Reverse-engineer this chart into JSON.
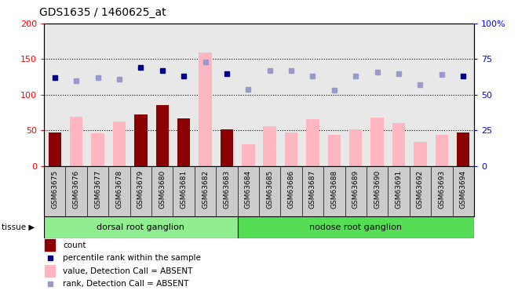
{
  "title": "GDS1635 / 1460625_at",
  "categories": [
    "GSM63675",
    "GSM63676",
    "GSM63677",
    "GSM63678",
    "GSM63679",
    "GSM63680",
    "GSM63681",
    "GSM63682",
    "GSM63683",
    "GSM63684",
    "GSM63685",
    "GSM63686",
    "GSM63687",
    "GSM63688",
    "GSM63689",
    "GSM63690",
    "GSM63691",
    "GSM63692",
    "GSM63693",
    "GSM63694"
  ],
  "bar_values": [
    47,
    0,
    0,
    0,
    72,
    86,
    67,
    0,
    51,
    0,
    0,
    0,
    0,
    0,
    0,
    0,
    0,
    0,
    0,
    47
  ],
  "pink_bar_values": [
    0,
    69,
    46,
    62,
    0,
    0,
    0,
    159,
    0,
    31,
    56,
    47,
    66,
    44,
    51,
    68,
    60,
    34,
    44,
    0
  ],
  "dark_blue_dots": [
    62,
    0,
    0,
    0,
    69,
    67,
    63,
    0,
    65,
    0,
    0,
    0,
    0,
    0,
    0,
    0,
    0,
    0,
    0,
    63
  ],
  "light_blue_dots": [
    0,
    60,
    62,
    61,
    0,
    0,
    0,
    73,
    0,
    54,
    67,
    67,
    63,
    53,
    63,
    66,
    65,
    57,
    64,
    0
  ],
  "tissue_groups": [
    {
      "label": "dorsal root ganglion",
      "start": 0,
      "end": 8,
      "color": "#90ee90"
    },
    {
      "label": "nodose root ganglion",
      "start": 9,
      "end": 19,
      "color": "#55dd55"
    }
  ],
  "ylim_left": [
    0,
    200
  ],
  "ylim_right": [
    0,
    100
  ],
  "yticks_left": [
    0,
    50,
    100,
    150,
    200
  ],
  "yticks_right": [
    0,
    25,
    50,
    75,
    100
  ],
  "bar_color_dark": "#8B0000",
  "bar_color_pink": "#FFB6C1",
  "dot_color_dark": "#00008B",
  "dot_color_light": "#9999CC",
  "bg_color": "#E8E8E8",
  "xticklabel_bg": "#D3D3D3",
  "legend_items": [
    {
      "label": "count",
      "color": "#8B0000",
      "type": "bar"
    },
    {
      "label": "percentile rank within the sample",
      "color": "#00008B",
      "type": "dot"
    },
    {
      "label": "value, Detection Call = ABSENT",
      "color": "#FFB6C1",
      "type": "bar"
    },
    {
      "label": "rank, Detection Call = ABSENT",
      "color": "#9999CC",
      "type": "dot"
    }
  ]
}
